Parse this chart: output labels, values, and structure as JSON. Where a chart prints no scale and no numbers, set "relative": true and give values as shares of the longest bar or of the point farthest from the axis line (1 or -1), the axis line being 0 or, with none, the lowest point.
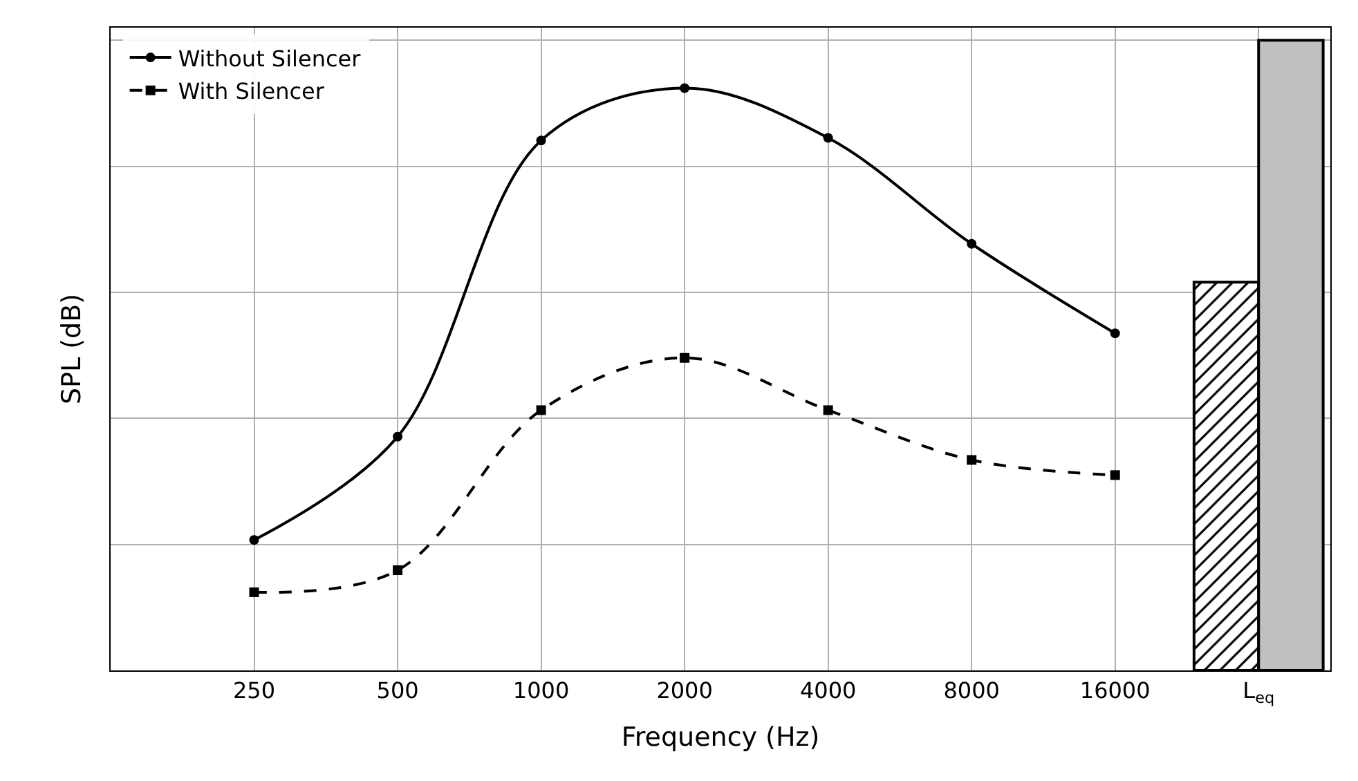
{
  "chart_data": {
    "type": "line",
    "relative": true,
    "xlabel": "Frequency (Hz)",
    "ylabel": "SPL (dB)",
    "grid": true,
    "legend": "top left",
    "categories": [
      "250",
      "500",
      "1000",
      "2000",
      "4000",
      "8000",
      "16000",
      "L$_{eq}$"
    ],
    "series": [
      {
        "name": "Without Silencer",
        "color": "#000000",
        "marker": "circle",
        "line_style": "solid",
        "values": [
          0.207,
          0.371,
          0.841,
          0.924,
          0.845,
          0.677,
          0.535,
          null
        ]
      },
      {
        "type": "line",
        "name": "With Silencer",
        "color": "#000000",
        "marker": "square",
        "line_style": "dashed",
        "values": [
          0.124,
          0.159,
          0.413,
          0.496,
          0.413,
          0.334,
          0.31,
          null
        ]
      },
      {
        "type": "bar",
        "color": "#000000",
        "values": [
          null,
          null,
          null,
          null,
          null,
          null,
          null,
          0.616
        ]
      },
      {
        "type": "bar",
        "color": "#c0c0c0",
        "values": [
          null,
          null,
          null,
          null,
          null,
          null,
          null,
          1.0
        ]
      }
    ]
  }
}
